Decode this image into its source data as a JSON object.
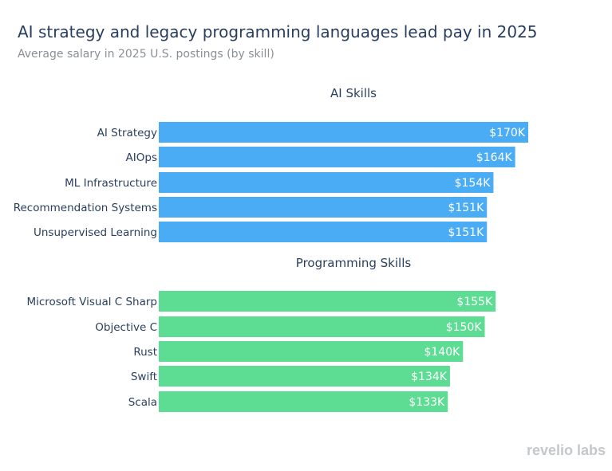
{
  "title": "AI strategy and legacy programming languages lead pay in 2025",
  "subtitle": "Average salary in 2025 U.S. postings (by skill)",
  "logo": "revelio labs",
  "chart_data": [
    {
      "type": "bar",
      "orientation": "horizontal",
      "title": "AI Skills",
      "color": "#4aacf5",
      "categories": [
        "AI Strategy",
        "AIOps",
        "ML Infrastructure",
        "Recommendation Systems",
        "Unsupervised Learning"
      ],
      "values": [
        170,
        164,
        154,
        151,
        151
      ],
      "data_labels": [
        "$170K",
        "$164K",
        "$154K",
        "$151K",
        "$151K"
      ]
    },
    {
      "type": "bar",
      "orientation": "horizontal",
      "title": "Programming Skills",
      "color": "#5ddc93",
      "categories": [
        "Microsoft Visual C Sharp",
        "Objective C",
        "Rust",
        "Swift",
        "Scala"
      ],
      "values": [
        155,
        150,
        140,
        134,
        133
      ],
      "data_labels": [
        "$155K",
        "$150K",
        "$140K",
        "$134K",
        "$133K"
      ]
    }
  ]
}
